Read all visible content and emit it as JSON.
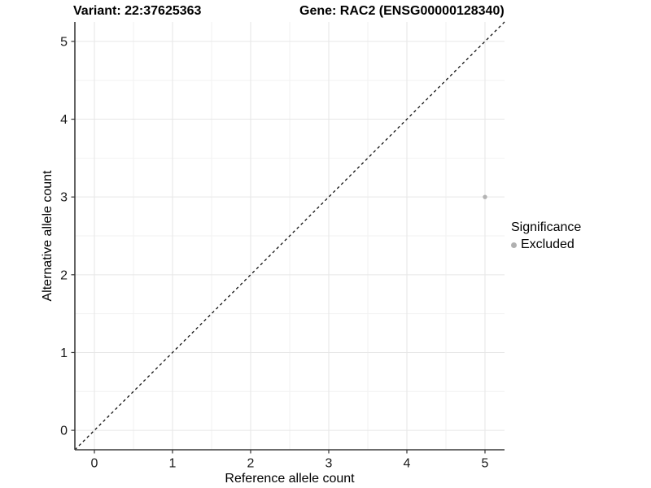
{
  "header": {
    "variant_title": "Variant: 22:37625363",
    "gene_title": "Gene: RAC2 (ENSG00000128340)"
  },
  "chart_data": {
    "type": "scatter",
    "title": "Variant: 22:37625363  Gene: RAC2 (ENSG00000128340)",
    "xlabel": "Reference allele count",
    "ylabel": "Alternative allele count",
    "xlim": [
      -0.25,
      5.25
    ],
    "ylim": [
      -0.25,
      5.25
    ],
    "xticks": [
      0,
      1,
      2,
      3,
      4,
      5
    ],
    "yticks": [
      0,
      1,
      2,
      3,
      4,
      5
    ],
    "xtick_labels": [
      "0",
      "1",
      "2",
      "3",
      "4",
      "5"
    ],
    "ytick_labels": [
      "0",
      "1",
      "2",
      "3",
      "4",
      "5"
    ],
    "minor_xticks": [
      0.5,
      1.5,
      2.5,
      3.5,
      4.5
    ],
    "minor_yticks": [
      0.5,
      1.5,
      2.5,
      3.5,
      4.5
    ],
    "grid": true,
    "identity_line": {
      "style": "dashed",
      "slope": 1,
      "intercept": 0,
      "color": "#111111"
    },
    "series": [
      {
        "name": "Excluded",
        "color": "#b3b3b3",
        "point_radius": 2.7,
        "points": [
          {
            "x": 5,
            "y": 3
          }
        ]
      }
    ],
    "legend": {
      "title": "Significance",
      "position": "right",
      "items": [
        {
          "label": "Excluded",
          "color": "#b0b0b0"
        }
      ]
    },
    "colors": {
      "background": "#ffffff",
      "axis_line": "#3c3c3c",
      "tick_mark": "#333333",
      "grid_major": "#e6e6e6",
      "grid_minor": "#f2f2f2",
      "text": "#000000"
    }
  }
}
